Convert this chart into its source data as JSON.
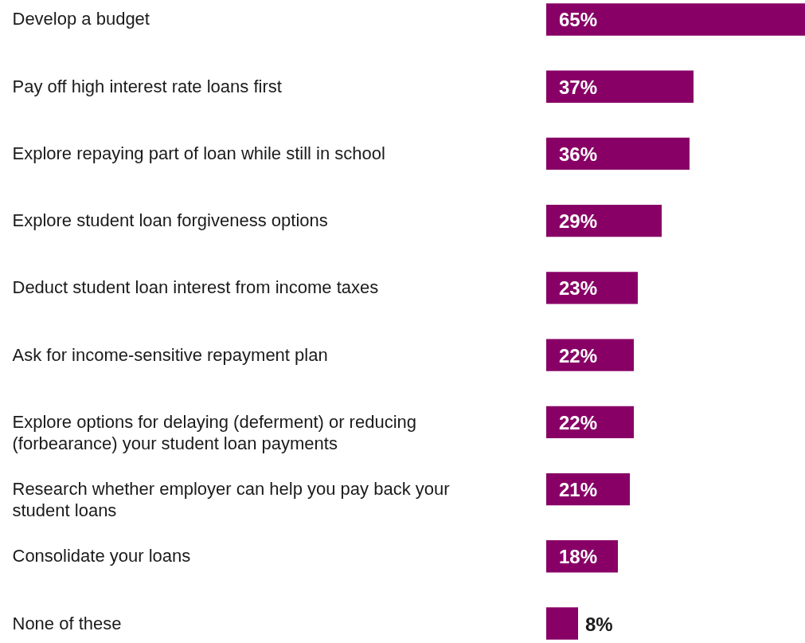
{
  "chart_data": {
    "type": "bar",
    "orientation": "horizontal",
    "categories": [
      "Develop a budget",
      "Pay off high interest rate loans first",
      "Explore repaying part of loan while still in school",
      "Explore student loan forgiveness options",
      "Deduct student loan interest from income taxes",
      "Ask for income-sensitive repayment plan",
      "Explore options for delaying (deferment) or reducing (forbearance) your student loan payments",
      "Research whether employer can help you pay back your student loans",
      "Consolidate your loans",
      "None of these"
    ],
    "values": [
      65,
      37,
      36,
      29,
      23,
      22,
      22,
      21,
      18,
      8
    ],
    "value_labels": [
      "65%",
      "37%",
      "36%",
      "29%",
      "23%",
      "22%",
      "22%",
      "21%",
      "18%",
      "8%"
    ],
    "color": "#880066"
  }
}
